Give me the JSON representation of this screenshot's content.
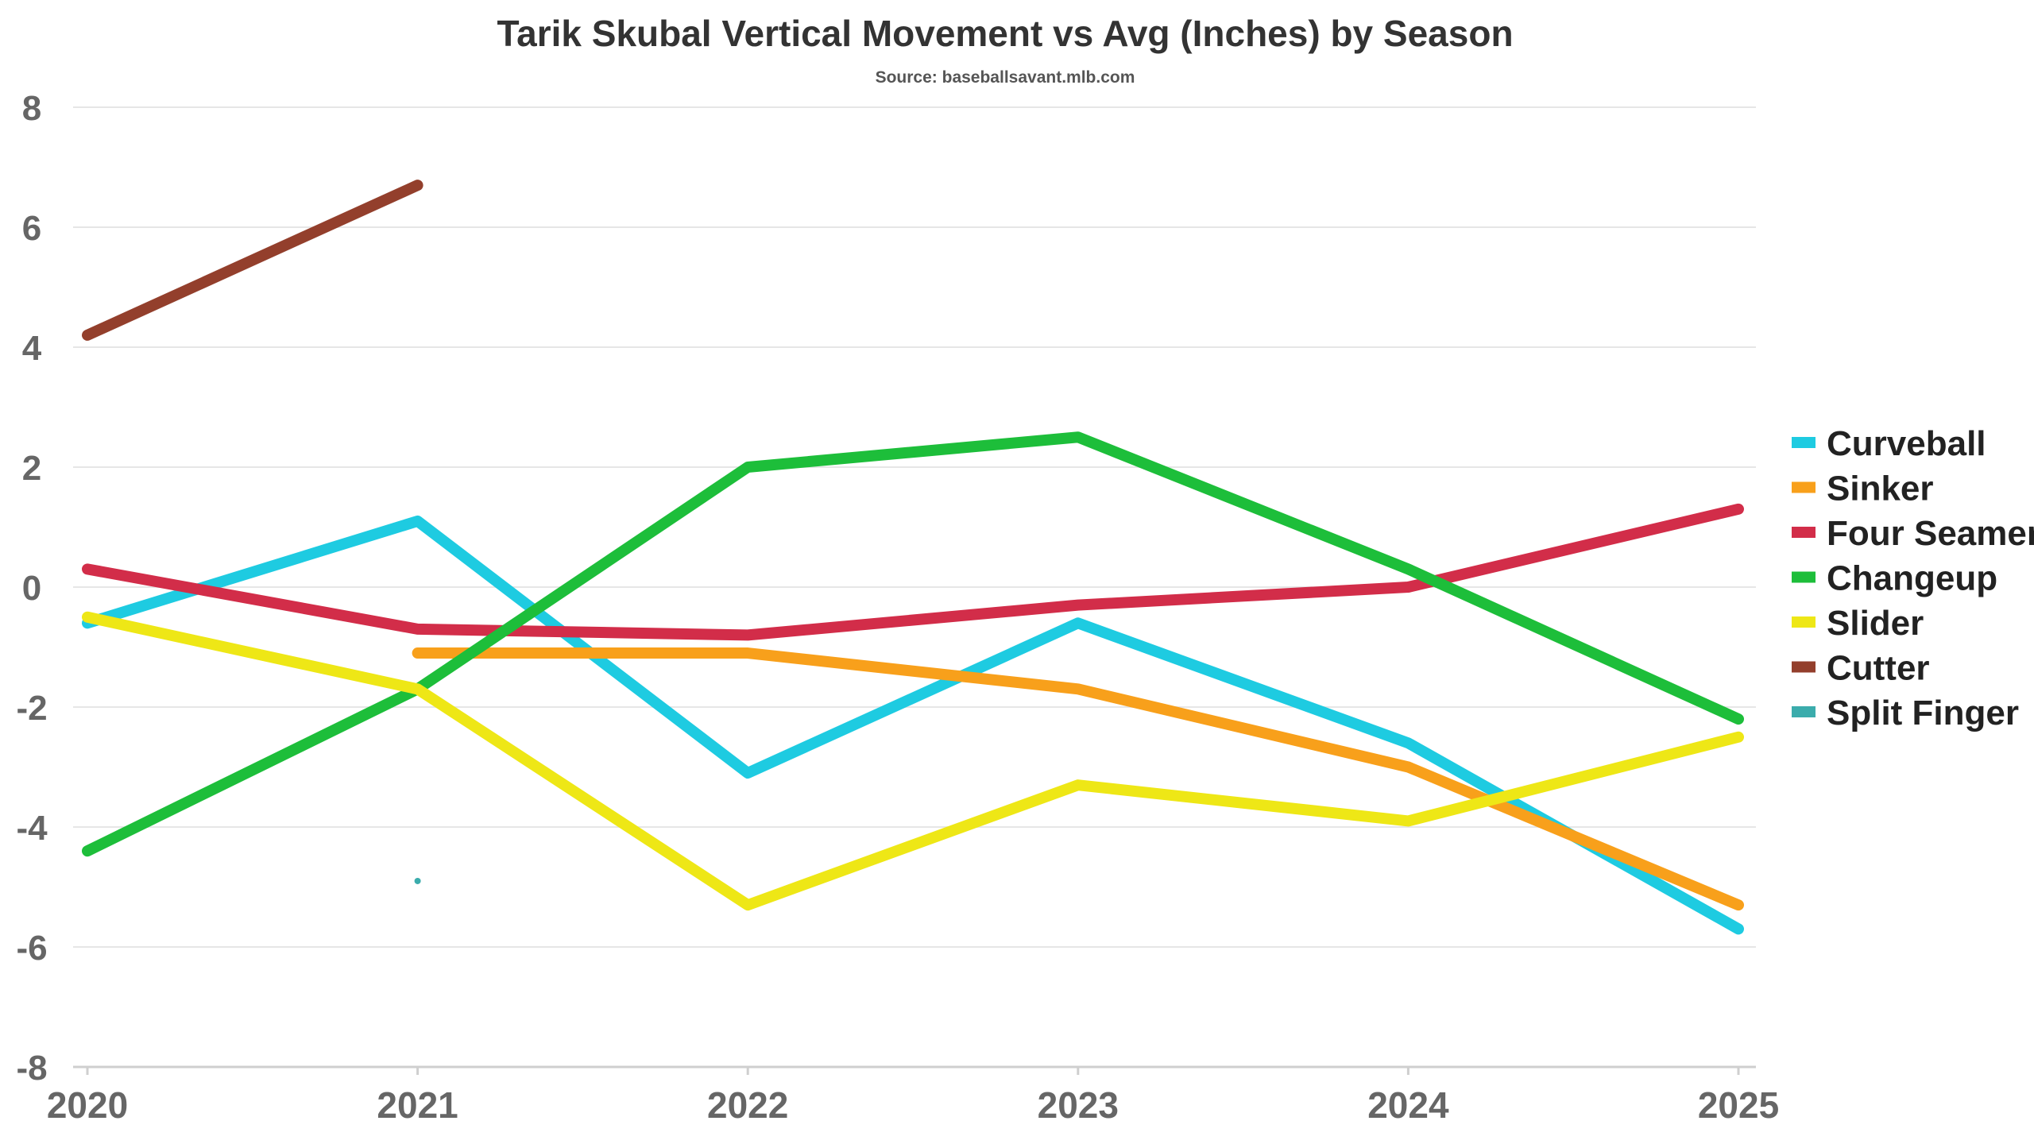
{
  "chart_data": {
    "type": "line",
    "title": "Tarik Skubal Vertical Movement vs Avg (Inches) by Season",
    "subtitle": "Source: baseballsavant.mlb.com",
    "xlabel": "",
    "ylabel": "",
    "x": [
      "2020",
      "2021",
      "2022",
      "2023",
      "2024",
      "2025"
    ],
    "ylim": [
      -8,
      8
    ],
    "yticks": [
      "8",
      "6",
      "4",
      "2",
      "0",
      "-2",
      "-4",
      "-6",
      "-8"
    ],
    "grid": "horizontal",
    "legend_position": "right",
    "series": [
      {
        "name": "Curveball",
        "color": "#1ECBE1",
        "values": [
          -0.6,
          1.1,
          -3.1,
          -0.6,
          -2.6,
          -5.7
        ]
      },
      {
        "name": "Sinker",
        "color": "#F8A01B",
        "values": [
          null,
          -1.1,
          -1.1,
          -1.7,
          -3.0,
          -5.3
        ]
      },
      {
        "name": "Four Seamer",
        "color": "#D22D49",
        "values": [
          0.3,
          -0.7,
          -0.8,
          -0.3,
          0.0,
          1.3
        ]
      },
      {
        "name": "Changeup",
        "color": "#1DBE3A",
        "values": [
          -4.4,
          -1.7,
          2.0,
          2.5,
          0.3,
          -2.2
        ]
      },
      {
        "name": "Slider",
        "color": "#EEE716",
        "values": [
          -0.5,
          -1.7,
          -5.3,
          -3.3,
          -3.9,
          -2.5
        ]
      },
      {
        "name": "Cutter",
        "color": "#933F2C",
        "values": [
          4.2,
          6.7,
          null,
          null,
          null,
          null
        ]
      },
      {
        "name": "Split Finger",
        "color": "#3BACAC",
        "values": [
          null,
          -4.9,
          null,
          null,
          null,
          null
        ]
      }
    ]
  }
}
